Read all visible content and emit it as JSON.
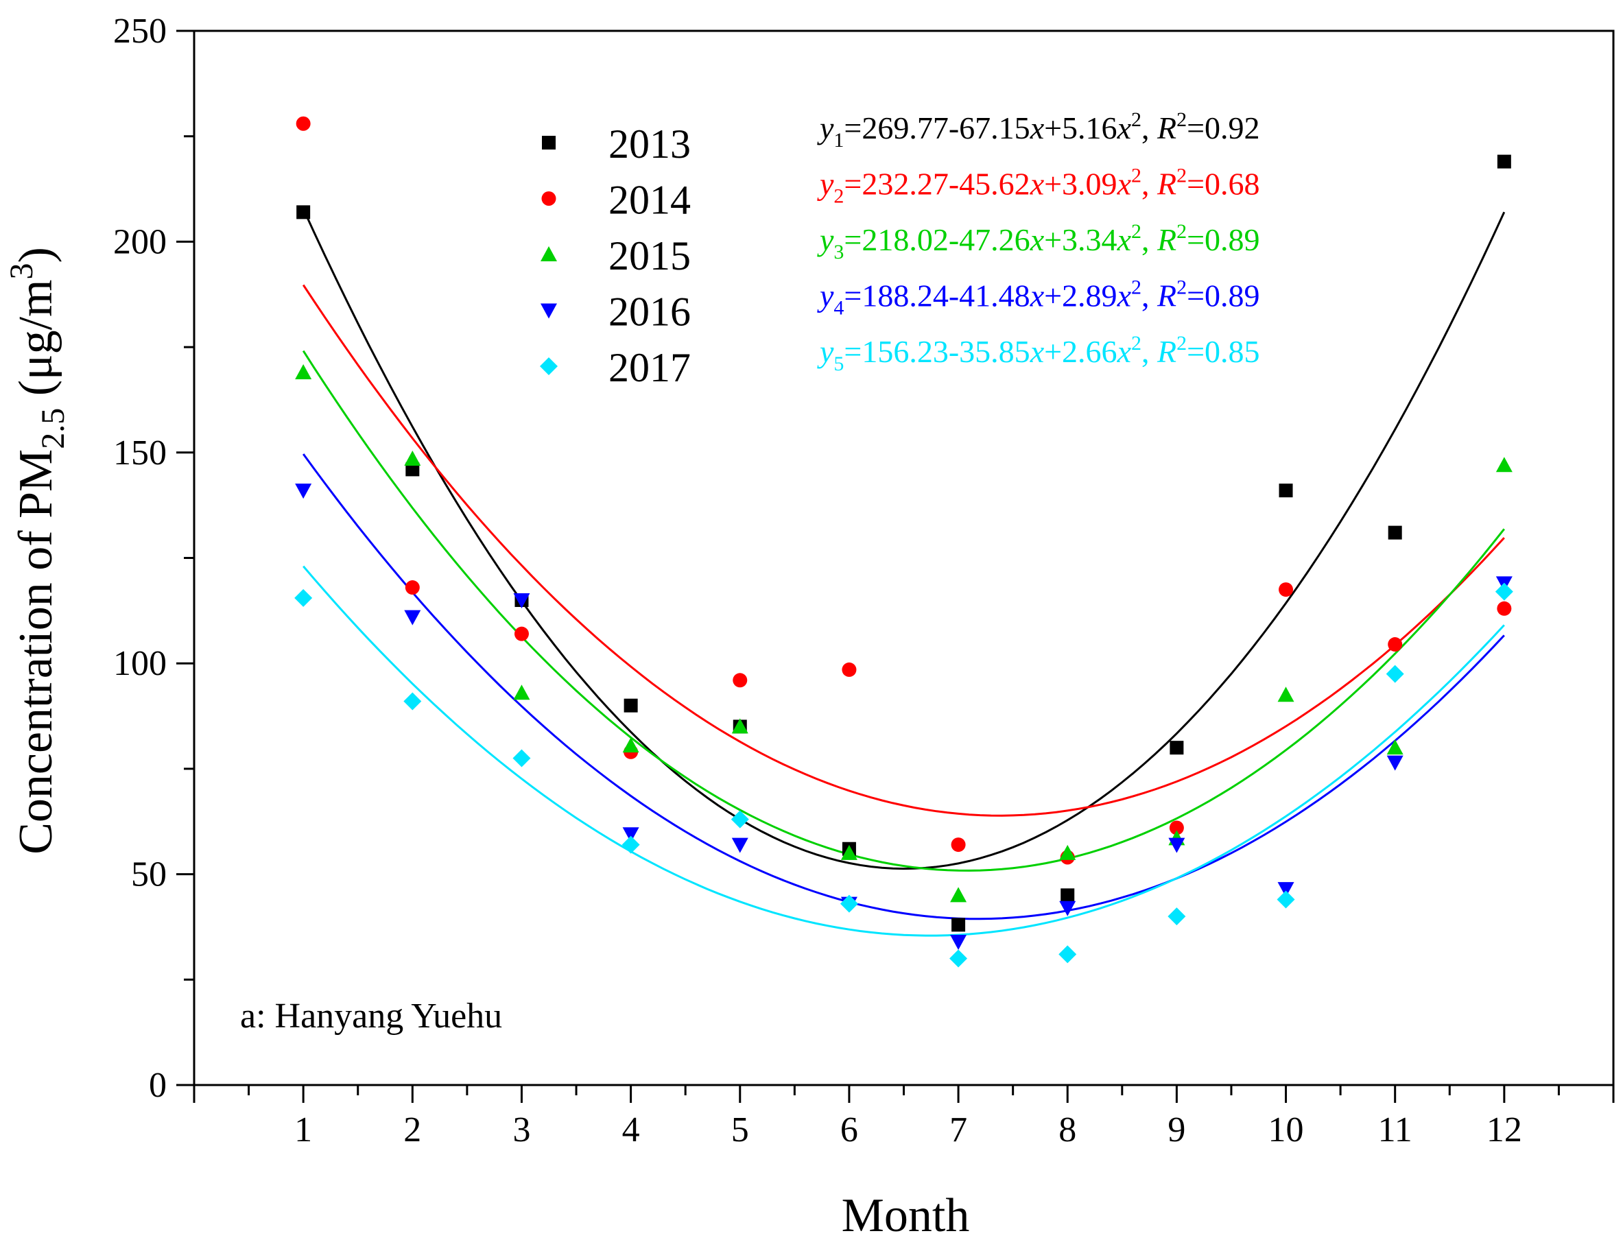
{
  "chart_data": {
    "type": "scatter",
    "title": "",
    "xlabel": "Month",
    "ylabel_prefix": "Concentration of PM",
    "ylabel_sub": "2.5",
    "ylabel_unit_open": " (μg/m",
    "ylabel_unit_sup": "3",
    "ylabel_unit_close": ")",
    "annotation": "a: Hanyang Yuehu",
    "xlim": [
      0,
      13
    ],
    "ylim": [
      0,
      250
    ],
    "x_ticks": [
      1,
      2,
      3,
      4,
      5,
      6,
      7,
      8,
      9,
      10,
      11,
      12
    ],
    "y_ticks": [
      0,
      50,
      100,
      150,
      200,
      250
    ],
    "grid": false,
    "legend_position": "top-left",
    "series": [
      {
        "name": "2013",
        "marker": "square",
        "color": "#000000",
        "x": [
          1,
          2,
          3,
          4,
          5,
          6,
          7,
          8,
          9,
          10,
          11,
          12
        ],
        "values": [
          207,
          146,
          115,
          90,
          85,
          56,
          38,
          45,
          80,
          141,
          131,
          219
        ],
        "fit": {
          "a": 269.77,
          "b": -67.15,
          "c": 5.16
        },
        "eq": {
          "sub": "1",
          "const": "=269.77-67.15",
          "lin": "+5.16",
          "r2": "=0.92"
        }
      },
      {
        "name": "2014",
        "marker": "circle",
        "color": "#ff0000",
        "x": [
          1,
          2,
          3,
          4,
          5,
          6,
          7,
          8,
          9,
          10,
          11,
          12
        ],
        "values": [
          228,
          118,
          107,
          79,
          96,
          98.5,
          57,
          54,
          61,
          117.5,
          104.5,
          113
        ],
        "fit": {
          "a": 232.27,
          "b": -45.62,
          "c": 3.09
        },
        "eq": {
          "sub": "2",
          "const": "=232.27-45.62",
          "lin": "+3.09",
          "r2": "=0.68"
        }
      },
      {
        "name": "2015",
        "marker": "triangle-up",
        "color": "#00d000",
        "x": [
          1,
          2,
          3,
          4,
          5,
          6,
          7,
          8,
          9,
          10,
          11,
          12
        ],
        "values": [
          169,
          148.5,
          93,
          80.5,
          85,
          55,
          45,
          55,
          58.5,
          92.5,
          80,
          147
        ],
        "fit": {
          "a": 218.02,
          "b": -47.26,
          "c": 3.34
        },
        "eq": {
          "sub": "3",
          "const": "=218.02-47.26",
          "lin": "+3.34",
          "r2": "=0.89"
        }
      },
      {
        "name": "2016",
        "marker": "triangle-down",
        "color": "#0000ff",
        "x": [
          1,
          2,
          3,
          4,
          5,
          6,
          7,
          8,
          9,
          10,
          11,
          12
        ],
        "values": [
          141,
          111,
          115,
          59.5,
          57,
          43,
          34,
          42,
          57,
          46.5,
          76.5,
          119
        ],
        "fit": {
          "a": 188.24,
          "b": -41.48,
          "c": 2.89
        },
        "eq": {
          "sub": "4",
          "const": "=188.24-41.48",
          "lin": "+2.89",
          "r2": "=0.89"
        }
      },
      {
        "name": "2017",
        "marker": "diamond",
        "color": "#00e5ff",
        "x": [
          1,
          2,
          3,
          4,
          5,
          6,
          7,
          8,
          9,
          10,
          11,
          12
        ],
        "values": [
          115.5,
          91,
          77.5,
          57,
          63,
          43,
          30,
          31,
          40,
          44,
          97.5,
          117
        ],
        "fit": {
          "a": 156.23,
          "b": -35.85,
          "c": 2.66
        },
        "eq": {
          "sub": "5",
          "const": "=156.23-35.85",
          "lin": "+2.66",
          "r2": "=0.85"
        }
      }
    ]
  }
}
